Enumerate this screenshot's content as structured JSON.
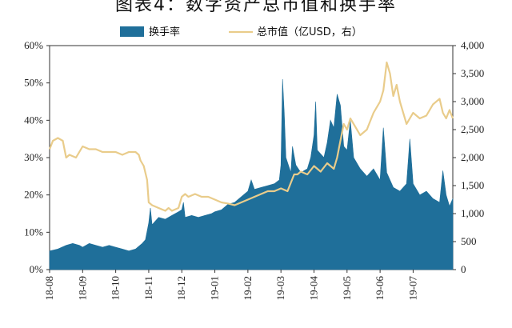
{
  "title": "图表4：数字资产总市值和换手率",
  "chart_data": {
    "type": "bar+line",
    "legend": [
      "换手率",
      "总市值（亿USD，右）"
    ],
    "colors": {
      "bar": "#1f6f9a",
      "line": "#e9cc8b"
    },
    "left_axis": {
      "ticks": [
        "0%",
        "10%",
        "20%",
        "30%",
        "40%",
        "50%",
        "60%"
      ],
      "ylim": [
        0,
        60
      ]
    },
    "right_axis": {
      "ticks": [
        "0",
        "500",
        "1,000",
        "1,500",
        "2,000",
        "2,500",
        "3,000",
        "3,500",
        "4,000"
      ],
      "ylim": [
        0,
        4000
      ]
    },
    "x_ticks": [
      "18-08",
      "18-09",
      "18-10",
      "18-11",
      "18-12",
      "19-01",
      "19-02",
      "19-03",
      "19-04",
      "19-05",
      "19-06",
      "19-07"
    ],
    "x_range": [
      0,
      12.2
    ],
    "series": [
      {
        "name": "换手率",
        "axis": "left",
        "points": [
          [
            0.0,
            5.0
          ],
          [
            0.25,
            5.5
          ],
          [
            0.5,
            6.5
          ],
          [
            0.7,
            7.0
          ],
          [
            0.9,
            6.5
          ],
          [
            1.0,
            6.0
          ],
          [
            1.2,
            7.0
          ],
          [
            1.4,
            6.5
          ],
          [
            1.6,
            6.0
          ],
          [
            1.8,
            6.5
          ],
          [
            2.0,
            6.0
          ],
          [
            2.2,
            5.5
          ],
          [
            2.4,
            5.0
          ],
          [
            2.6,
            5.5
          ],
          [
            2.8,
            7.0
          ],
          [
            2.9,
            8.0
          ],
          [
            3.0,
            12.5
          ],
          [
            3.05,
            16.5
          ],
          [
            3.1,
            12.0
          ],
          [
            3.3,
            14.0
          ],
          [
            3.5,
            13.5
          ],
          [
            3.7,
            14.5
          ],
          [
            3.9,
            15.5
          ],
          [
            4.0,
            16.0
          ],
          [
            4.05,
            18.0
          ],
          [
            4.1,
            14.0
          ],
          [
            4.3,
            14.5
          ],
          [
            4.5,
            14.0
          ],
          [
            4.7,
            14.5
          ],
          [
            4.9,
            15.0
          ],
          [
            5.0,
            15.5
          ],
          [
            5.2,
            16.0
          ],
          [
            5.4,
            17.5
          ],
          [
            5.6,
            18.0
          ],
          [
            5.8,
            19.5
          ],
          [
            6.0,
            21.0
          ],
          [
            6.1,
            24.0
          ],
          [
            6.2,
            21.5
          ],
          [
            6.4,
            22.0
          ],
          [
            6.6,
            22.5
          ],
          [
            6.8,
            23.0
          ],
          [
            6.95,
            24.0
          ],
          [
            7.0,
            28.0
          ],
          [
            7.05,
            51.0
          ],
          [
            7.1,
            42.0
          ],
          [
            7.15,
            30.0
          ],
          [
            7.3,
            26.0
          ],
          [
            7.35,
            33.0
          ],
          [
            7.45,
            28.0
          ],
          [
            7.6,
            26.0
          ],
          [
            7.8,
            27.0
          ],
          [
            7.9,
            30.0
          ],
          [
            8.0,
            36.0
          ],
          [
            8.05,
            45.0
          ],
          [
            8.1,
            32.0
          ],
          [
            8.3,
            30.0
          ],
          [
            8.4,
            34.0
          ],
          [
            8.5,
            40.0
          ],
          [
            8.6,
            38.0
          ],
          [
            8.7,
            47.0
          ],
          [
            8.8,
            44.0
          ],
          [
            8.9,
            33.0
          ],
          [
            9.0,
            32.0
          ],
          [
            9.1,
            40.0
          ],
          [
            9.2,
            30.0
          ],
          [
            9.4,
            27.0
          ],
          [
            9.6,
            25.0
          ],
          [
            9.8,
            27.0
          ],
          [
            10.0,
            24.0
          ],
          [
            10.1,
            38.0
          ],
          [
            10.2,
            26.0
          ],
          [
            10.4,
            22.0
          ],
          [
            10.6,
            21.0
          ],
          [
            10.8,
            23.0
          ],
          [
            10.9,
            35.0
          ],
          [
            11.0,
            23.0
          ],
          [
            11.2,
            20.0
          ],
          [
            11.4,
            21.0
          ],
          [
            11.6,
            19.0
          ],
          [
            11.8,
            18.0
          ],
          [
            11.9,
            26.5
          ],
          [
            12.0,
            20.0
          ],
          [
            12.1,
            17.0
          ],
          [
            12.2,
            19.0
          ]
        ]
      },
      {
        "name": "总市值（亿USD，右）",
        "axis": "right",
        "points": [
          [
            0.0,
            2150
          ],
          [
            0.1,
            2300
          ],
          [
            0.25,
            2350
          ],
          [
            0.4,
            2300
          ],
          [
            0.5,
            2000
          ],
          [
            0.6,
            2050
          ],
          [
            0.8,
            2000
          ],
          [
            1.0,
            2200
          ],
          [
            1.2,
            2150
          ],
          [
            1.4,
            2150
          ],
          [
            1.6,
            2100
          ],
          [
            1.8,
            2100
          ],
          [
            2.0,
            2100
          ],
          [
            2.2,
            2050
          ],
          [
            2.4,
            2100
          ],
          [
            2.6,
            2100
          ],
          [
            2.7,
            2050
          ],
          [
            2.75,
            1950
          ],
          [
            2.85,
            1850
          ],
          [
            2.95,
            1600
          ],
          [
            3.0,
            1200
          ],
          [
            3.1,
            1150
          ],
          [
            3.3,
            1100
          ],
          [
            3.5,
            1050
          ],
          [
            3.6,
            1100
          ],
          [
            3.7,
            1050
          ],
          [
            3.9,
            1100
          ],
          [
            4.0,
            1300
          ],
          [
            4.1,
            1350
          ],
          [
            4.2,
            1300
          ],
          [
            4.4,
            1350
          ],
          [
            4.6,
            1300
          ],
          [
            4.8,
            1300
          ],
          [
            5.0,
            1250
          ],
          [
            5.2,
            1200
          ],
          [
            5.4,
            1180
          ],
          [
            5.6,
            1150
          ],
          [
            5.8,
            1200
          ],
          [
            6.0,
            1250
          ],
          [
            6.2,
            1300
          ],
          [
            6.4,
            1350
          ],
          [
            6.6,
            1400
          ],
          [
            6.8,
            1400
          ],
          [
            7.0,
            1450
          ],
          [
            7.2,
            1400
          ],
          [
            7.4,
            1700
          ],
          [
            7.5,
            1700
          ],
          [
            7.6,
            1750
          ],
          [
            7.8,
            1700
          ],
          [
            8.0,
            1850
          ],
          [
            8.2,
            1750
          ],
          [
            8.4,
            1900
          ],
          [
            8.6,
            1800
          ],
          [
            8.7,
            2000
          ],
          [
            8.8,
            2300
          ],
          [
            8.9,
            2600
          ],
          [
            9.0,
            2500
          ],
          [
            9.1,
            2700
          ],
          [
            9.2,
            2600
          ],
          [
            9.4,
            2400
          ],
          [
            9.6,
            2500
          ],
          [
            9.8,
            2800
          ],
          [
            10.0,
            3000
          ],
          [
            10.1,
            3200
          ],
          [
            10.2,
            3700
          ],
          [
            10.3,
            3500
          ],
          [
            10.4,
            3100
          ],
          [
            10.5,
            3300
          ],
          [
            10.6,
            3000
          ],
          [
            10.8,
            2600
          ],
          [
            11.0,
            2800
          ],
          [
            11.2,
            2700
          ],
          [
            11.4,
            2750
          ],
          [
            11.6,
            2950
          ],
          [
            11.8,
            3050
          ],
          [
            11.9,
            2800
          ],
          [
            12.0,
            2700
          ],
          [
            12.1,
            2850
          ],
          [
            12.2,
            2700
          ]
        ]
      }
    ]
  }
}
